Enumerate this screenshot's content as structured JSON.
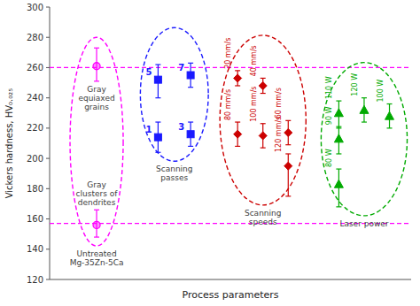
{
  "chart_data": {
    "type": "scatter",
    "xlabel": "Process parameters",
    "ylabel": "Vickers hardness, HV₀.₀₂₅",
    "xlim": [
      0.5,
      10.5
    ],
    "xticks": [],
    "ylim": [
      120,
      300
    ],
    "yticks": [
      120,
      140,
      160,
      180,
      200,
      220,
      240,
      260,
      280,
      300
    ],
    "tick_labels": "y",
    "grid": false,
    "reference_lines": [
      {
        "value": 260,
        "color": "#ff00ff"
      },
      {
        "value": 157,
        "color": "#ff00ff"
      }
    ],
    "series": [
      {
        "color": "#ff00ff",
        "marker": "circle",
        "x": [
          1.8,
          1.8
        ],
        "values": [
          261,
          156
        ],
        "error_low": [
          10,
          8
        ],
        "error_high": [
          12,
          10
        ],
        "annotations": [
          "Gray\nequiaxed\ngrains",
          "Gray\nclusters of\ndendrites"
        ],
        "group_label": "Untreated\nMg-35Zn-5Ca"
      },
      {
        "color": "#1a1aff",
        "marker": "square",
        "x": [
          3.5,
          4.4,
          3.5,
          4.4
        ],
        "values": [
          252,
          255,
          214,
          216
        ],
        "error_low": [
          12,
          8,
          10,
          8
        ],
        "error_high": [
          10,
          8,
          10,
          8
        ],
        "point_labels": [
          "5",
          "7",
          "1",
          "3"
        ],
        "group_label": "Scanning\npasses"
      },
      {
        "color": "#cc0000",
        "marker": "diamond",
        "x": [
          5.7,
          6.4,
          5.7,
          6.4,
          7.1,
          7.1
        ],
        "values": [
          253,
          248,
          216,
          215,
          217,
          195
        ],
        "error_low": [
          5,
          5,
          8,
          8,
          8,
          20
        ],
        "error_high": [
          5,
          5,
          8,
          8,
          8,
          8
        ],
        "point_labels": [
          "20 mm/s",
          "40 mm/s",
          "80 mm/s",
          "100 mm/s",
          "60 mm/s",
          "120 mm/s"
        ],
        "group_label": "Scanning\nspeeds"
      },
      {
        "color": "#00aa00",
        "marker": "triangle",
        "x": [
          8.5,
          9.2,
          9.9,
          8.5,
          8.5
        ],
        "values": [
          230,
          232,
          228,
          213,
          183
        ],
        "error_low": [
          10,
          8,
          8,
          10,
          15
        ],
        "error_high": [
          8,
          8,
          8,
          8,
          10
        ],
        "point_labels": [
          "110 W",
          "120 W",
          "100 W",
          "90 W",
          "80 W"
        ],
        "group_label": "Laser power"
      }
    ]
  }
}
